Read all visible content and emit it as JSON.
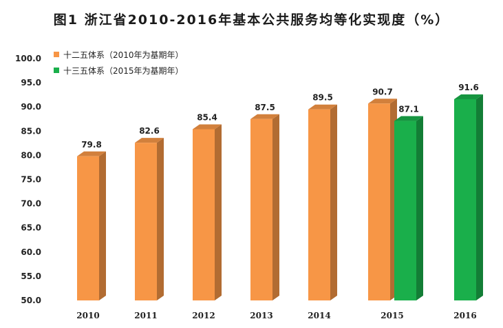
{
  "chart_data": {
    "type": "bar",
    "title": "图1  浙江省2010-2016年基本公共服务均等化实现度（%）",
    "xlabel": "",
    "ylabel": "",
    "ylim": [
      50,
      100
    ],
    "yticks": [
      "100.0",
      "95.0",
      "90.0",
      "85.0",
      "80.0",
      "75.0",
      "70.0",
      "65.0",
      "60.0",
      "55.0",
      "50.0"
    ],
    "categories": [
      "2010",
      "2011",
      "2012",
      "2013",
      "2014",
      "2015",
      "2016"
    ],
    "legend_position": "top-left",
    "grid": false,
    "series": [
      {
        "name": "十二五体系（2010年为基期年）",
        "color": "#F79646",
        "values": [
          79.8,
          82.6,
          85.4,
          87.5,
          89.5,
          90.7,
          null
        ],
        "labels": [
          "79.8",
          "82.6",
          "85.4",
          "87.5",
          "89.5",
          "90.7",
          null
        ]
      },
      {
        "name": "十三五体系（2015年为基期年）",
        "color": "#1AAF4B",
        "values": [
          null,
          null,
          null,
          null,
          null,
          87.1,
          91.6
        ],
        "labels": [
          null,
          null,
          null,
          null,
          null,
          "87.1",
          "91.6"
        ]
      }
    ]
  }
}
